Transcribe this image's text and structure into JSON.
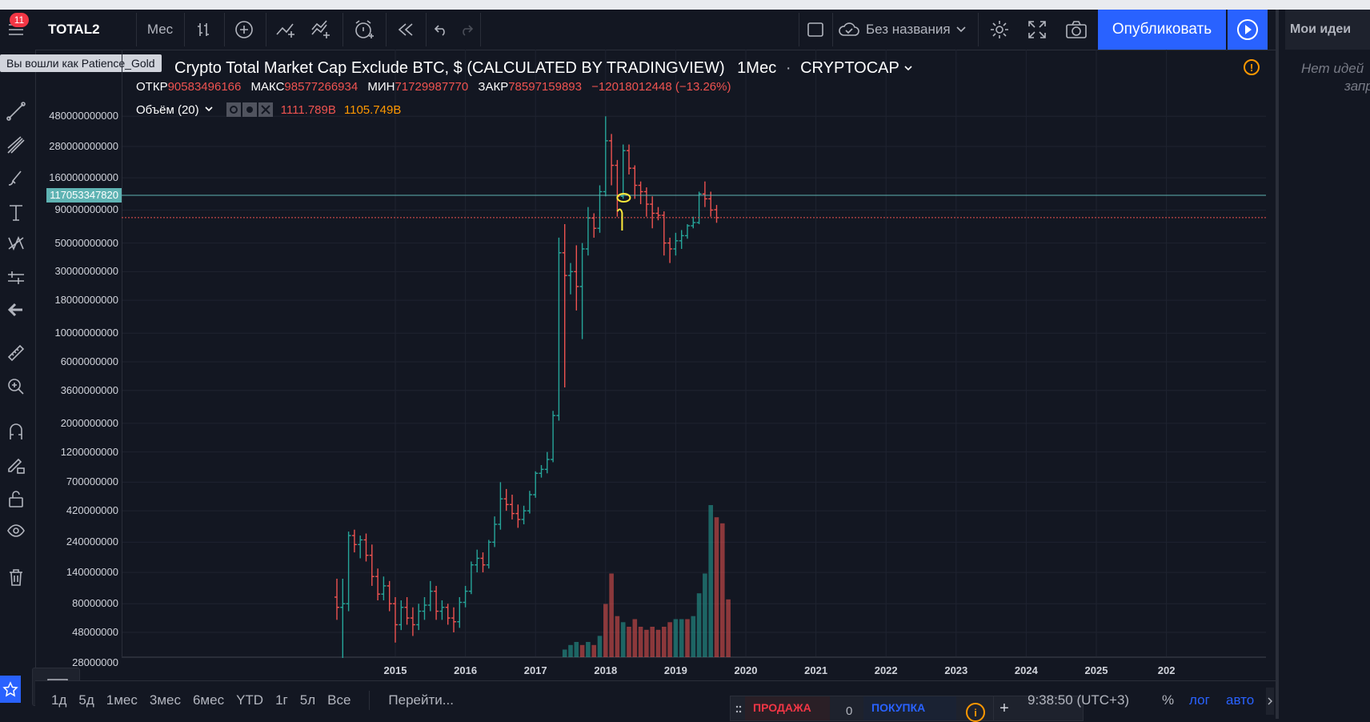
{
  "topbar": {
    "badge_count": "11",
    "symbol": "TOTAL2",
    "interval": "Мес",
    "layout_name": "Без названия",
    "publish_label": "Опубликовать"
  },
  "tooltip": "Вы вошли как Patience_Gold",
  "right_panel": {
    "title": "Мои идеи",
    "empty_line1": "Нет идей",
    "empty_line2": "запр"
  },
  "legend": {
    "title": "Crypto Total Market Cap Exclude BTC, $ (CALCULATED BY TRADINGVIEW)",
    "interval": "1Мес",
    "exchange": "CRYPTOCAP",
    "open_label": "ОТКР",
    "open_value": "90583496166",
    "high_label": "МАКС",
    "high_value": "98577266934",
    "low_label": "МИН",
    "low_value": "71729987770",
    "close_label": "ЗАКР",
    "close_value": "78597159893",
    "change": "−12018012448 (−13.26%)",
    "volume_label": "Объём (20)",
    "volume_value": "1111.789B",
    "volume_ma": "1105.749B"
  },
  "price_scale": {
    "labels": [
      "480000000000",
      "280000000000",
      "160000000000",
      "90000000000",
      "50000000000",
      "30000000000",
      "18000000000",
      "10000000000",
      "6000000000",
      "3600000000",
      "2000000000",
      "1200000000",
      "700000000",
      "420000000",
      "240000000",
      "140000000",
      "80000000",
      "48000000",
      "28000000"
    ],
    "crosshair_label": "117053347820"
  },
  "time_axis": {
    "labels": [
      "2015",
      "2016",
      "2017",
      "2018",
      "2019",
      "2020",
      "2021",
      "2022",
      "2023",
      "2024",
      "2025",
      "202"
    ]
  },
  "bottombar": {
    "ranges": [
      "1д",
      "5д",
      "1мес",
      "3мес",
      "6мес",
      "YTD",
      "1г",
      "5л",
      "Все"
    ],
    "goto": "Перейти...",
    "sell_label": "ПРОДАЖА",
    "spread": "0",
    "buy_label": "ПОКУПКА",
    "clock": "9:38:50 (UTC+3)",
    "percent": "%",
    "log": "лог",
    "auto": "авто"
  },
  "colors": {
    "up": "#26a69a",
    "down": "#ef5350",
    "accent": "#2962ff",
    "annotation": "#ffeb3b",
    "crosshair": "#5fb3b3"
  },
  "chart_data": {
    "type": "candlestick",
    "scale": "log",
    "interval": "monthly",
    "candles": [
      {
        "t": "2014-03",
        "o": 90000000.0,
        "h": 125000000.0,
        "l": 60000000.0,
        "c": 75000000.0
      },
      {
        "t": "2014-04",
        "o": 75000000.0,
        "h": 125000000.0,
        "l": 28000000.0,
        "c": 80000000.0
      },
      {
        "t": "2014-05",
        "o": 80000000.0,
        "h": 290000000.0,
        "l": 70000000.0,
        "c": 270000000.0
      },
      {
        "t": "2014-06",
        "o": 270000000.0,
        "h": 300000000.0,
        "l": 200000000.0,
        "c": 230000000.0
      },
      {
        "t": "2014-07",
        "o": 230000000.0,
        "h": 270000000.0,
        "l": 180000000.0,
        "c": 250000000.0
      },
      {
        "t": "2014-08",
        "o": 250000000.0,
        "h": 280000000.0,
        "l": 170000000.0,
        "c": 190000000.0
      },
      {
        "t": "2014-09",
        "o": 190000000.0,
        "h": 230000000.0,
        "l": 110000000.0,
        "c": 130000000.0
      },
      {
        "t": "2014-10",
        "o": 130000000.0,
        "h": 150000000.0,
        "l": 85000000.0,
        "c": 95000000.0
      },
      {
        "t": "2014-11",
        "o": 95000000.0,
        "h": 130000000.0,
        "l": 85000000.0,
        "c": 110000000.0
      },
      {
        "t": "2014-12",
        "o": 110000000.0,
        "h": 120000000.0,
        "l": 70000000.0,
        "c": 80000000.0
      },
      {
        "t": "2015-01",
        "o": 80000000.0,
        "h": 90000000.0,
        "l": 40000000.0,
        "c": 55000000.0
      },
      {
        "t": "2015-02",
        "o": 55000000.0,
        "h": 85000000.0,
        "l": 50000000.0,
        "c": 75000000.0
      },
      {
        "t": "2015-03",
        "o": 75000000.0,
        "h": 90000000.0,
        "l": 55000000.0,
        "c": 62000000.0
      },
      {
        "t": "2015-04",
        "o": 62000000.0,
        "h": 75000000.0,
        "l": 45000000.0,
        "c": 55000000.0
      },
      {
        "t": "2015-05",
        "o": 55000000.0,
        "h": 80000000.0,
        "l": 50000000.0,
        "c": 70000000.0
      },
      {
        "t": "2015-06",
        "o": 70000000.0,
        "h": 90000000.0,
        "l": 60000000.0,
        "c": 78000000.0
      },
      {
        "t": "2015-07",
        "o": 78000000.0,
        "h": 120000000.0,
        "l": 70000000.0,
        "c": 100000000.0
      },
      {
        "t": "2015-08",
        "o": 100000000.0,
        "h": 110000000.0,
        "l": 60000000.0,
        "c": 70000000.0
      },
      {
        "t": "2015-09",
        "o": 70000000.0,
        "h": 85000000.0,
        "l": 60000000.0,
        "c": 75000000.0
      },
      {
        "t": "2015-10",
        "o": 75000000.0,
        "h": 80000000.0,
        "l": 55000000.0,
        "c": 62000000.0
      },
      {
        "t": "2015-11",
        "o": 62000000.0,
        "h": 75000000.0,
        "l": 48000000.0,
        "c": 58000000.0
      },
      {
        "t": "2015-12",
        "o": 58000000.0,
        "h": 90000000.0,
        "l": 52000000.0,
        "c": 82000000.0
      },
      {
        "t": "2016-01",
        "o": 82000000.0,
        "h": 110000000.0,
        "l": 75000000.0,
        "c": 100000000.0
      },
      {
        "t": "2016-02",
        "o": 100000000.0,
        "h": 170000000.0,
        "l": 95000000.0,
        "c": 160000000.0
      },
      {
        "t": "2016-03",
        "o": 160000000.0,
        "h": 210000000.0,
        "l": 140000000.0,
        "c": 180000000.0
      },
      {
        "t": "2016-04",
        "o": 180000000.0,
        "h": 200000000.0,
        "l": 140000000.0,
        "c": 160000000.0
      },
      {
        "t": "2016-05",
        "o": 160000000.0,
        "h": 250000000.0,
        "l": 150000000.0,
        "c": 240000000.0
      },
      {
        "t": "2016-06",
        "o": 240000000.0,
        "h": 380000000.0,
        "l": 220000000.0,
        "c": 330000000.0
      },
      {
        "t": "2016-07",
        "o": 330000000.0,
        "h": 700000000.0,
        "l": 300000000.0,
        "c": 520000000.0
      },
      {
        "t": "2016-08",
        "o": 520000000.0,
        "h": 620000000.0,
        "l": 420000000.0,
        "c": 470000000.0
      },
      {
        "t": "2016-09",
        "o": 470000000.0,
        "h": 560000000.0,
        "l": 360000000.0,
        "c": 400000000.0
      },
      {
        "t": "2016-10",
        "o": 400000000.0,
        "h": 470000000.0,
        "l": 310000000.0,
        "c": 360000000.0
      },
      {
        "t": "2016-11",
        "o": 360000000.0,
        "h": 460000000.0,
        "l": 330000000.0,
        "c": 420000000.0
      },
      {
        "t": "2016-12",
        "o": 420000000.0,
        "h": 600000000.0,
        "l": 400000000.0,
        "c": 560000000.0
      },
      {
        "t": "2017-01",
        "o": 560000000.0,
        "h": 850000000.0,
        "l": 530000000.0,
        "c": 820000000.0
      },
      {
        "t": "2017-02",
        "o": 820000000.0,
        "h": 950000000.0,
        "l": 760000000.0,
        "c": 880000000.0
      },
      {
        "t": "2017-03",
        "o": 880000000.0,
        "h": 1200000000.0,
        "l": 820000000.0,
        "c": 1050000000.0
      },
      {
        "t": "2017-04",
        "o": 1050000000.0,
        "h": 2500000000.0,
        "l": 1000000000.0,
        "c": 2300000000.0
      },
      {
        "t": "2017-05",
        "o": 2300000000.0,
        "h": 55000000000.0,
        "l": 2100000000.0,
        "c": 42000000000.0
      },
      {
        "t": "2017-06",
        "o": 42000000000.0,
        "h": 70000000000.0,
        "l": 3800000000.0,
        "c": 28000000000.0
      },
      {
        "t": "2017-07",
        "o": 28000000000.0,
        "h": 35000000000.0,
        "l": 20000000000.0,
        "c": 30000000000.0
      },
      {
        "t": "2017-08",
        "o": 30000000000.0,
        "h": 48000000000.0,
        "l": 15000000000.0,
        "c": 23000000000.0
      },
      {
        "t": "2017-09",
        "o": 23000000000.0,
        "h": 50000000000.0,
        "l": 9000000000.0,
        "c": 45000000000.0
      },
      {
        "t": "2017-10",
        "o": 45000000000.0,
        "h": 95000000000.0,
        "l": 40000000000.0,
        "c": 78000000000.0
      },
      {
        "t": "2017-11",
        "o": 78000000000.0,
        "h": 85000000000.0,
        "l": 55000000000.0,
        "c": 65000000000.0
      },
      {
        "t": "2017-12",
        "o": 65000000000.0,
        "h": 140000000000.0,
        "l": 60000000000.0,
        "c": 125000000000.0
      },
      {
        "t": "2018-01",
        "o": 125000000000.0,
        "h": 480000000000.0,
        "l": 115000000000.0,
        "c": 310000000000.0
      },
      {
        "t": "2018-02",
        "o": 310000000000.0,
        "h": 350000000000.0,
        "l": 140000000000.0,
        "c": 200000000000.0
      },
      {
        "t": "2018-03",
        "o": 200000000000.0,
        "h": 220000000000.0,
        "l": 80000000000.0,
        "c": 115000000000.0
      },
      {
        "t": "2018-04",
        "o": 115000000000.0,
        "h": 290000000000.0,
        "l": 110000000000.0,
        "c": 260000000000.0
      },
      {
        "t": "2018-05",
        "o": 260000000000.0,
        "h": 290000000000.0,
        "l": 170000000000.0,
        "c": 190000000000.0
      },
      {
        "t": "2018-06",
        "o": 190000000000.0,
        "h": 200000000000.0,
        "l": 110000000000.0,
        "c": 140000000000.0
      },
      {
        "t": "2018-07",
        "o": 140000000000.0,
        "h": 150000000000.0,
        "l": 100000000000.0,
        "c": 125000000000.0
      },
      {
        "t": "2018-08",
        "o": 125000000000.0,
        "h": 135000000000.0,
        "l": 80000000000.0,
        "c": 100000000000.0
      },
      {
        "t": "2018-09",
        "o": 100000000000.0,
        "h": 115000000000.0,
        "l": 65000000000.0,
        "c": 85000000000.0
      },
      {
        "t": "2018-10",
        "o": 85000000000.0,
        "h": 95000000000.0,
        "l": 75000000000.0,
        "c": 82000000000.0
      },
      {
        "t": "2018-11",
        "o": 82000000000.0,
        "h": 88000000000.0,
        "l": 40000000000.0,
        "c": 50000000000.0
      },
      {
        "t": "2018-12",
        "o": 50000000000.0,
        "h": 55000000000.0,
        "l": 35000000000.0,
        "c": 45000000000.0
      },
      {
        "t": "2019-01",
        "o": 45000000000.0,
        "h": 60000000000.0,
        "l": 40000000000.0,
        "c": 52000000000.0
      },
      {
        "t": "2019-02",
        "o": 52000000000.0,
        "h": 63000000000.0,
        "l": 45000000000.0,
        "c": 57000000000.0
      },
      {
        "t": "2019-03",
        "o": 57000000000.0,
        "h": 70000000000.0,
        "l": 54000000000.0,
        "c": 68000000000.0
      },
      {
        "t": "2019-04",
        "o": 68000000000.0,
        "h": 80000000000.0,
        "l": 65000000000.0,
        "c": 72000000000.0
      },
      {
        "t": "2019-05",
        "o": 72000000000.0,
        "h": 125000000000.0,
        "l": 70000000000.0,
        "c": 120000000000.0
      },
      {
        "t": "2019-06",
        "o": 120000000000.0,
        "h": 150000000000.0,
        "l": 95000000000.0,
        "c": 110000000000.0
      },
      {
        "t": "2019-07",
        "o": 110000000000.0,
        "h": 125000000000.0,
        "l": 80000000000.0,
        "c": 90000000000.0
      },
      {
        "t": "2019-08",
        "o": 90580000000.0,
        "h": 98580000000.0,
        "l": 71730000000.0,
        "c": 78600000000.0
      }
    ],
    "volume_bars": [
      {
        "t": "2017-06",
        "v": 0.05,
        "dir": "up"
      },
      {
        "t": "2017-07",
        "v": 0.08,
        "dir": "up"
      },
      {
        "t": "2017-08",
        "v": 0.1,
        "dir": "up"
      },
      {
        "t": "2017-09",
        "v": 0.08,
        "dir": "down"
      },
      {
        "t": "2017-10",
        "v": 0.1,
        "dir": "up"
      },
      {
        "t": "2017-11",
        "v": 0.08,
        "dir": "down"
      },
      {
        "t": "2017-12",
        "v": 0.14,
        "dir": "up"
      },
      {
        "t": "2018-01",
        "v": 0.35,
        "dir": "down"
      },
      {
        "t": "2018-02",
        "v": 0.55,
        "dir": "down"
      },
      {
        "t": "2018-03",
        "v": 0.27,
        "dir": "down"
      },
      {
        "t": "2018-04",
        "v": 0.23,
        "dir": "up"
      },
      {
        "t": "2018-05",
        "v": 0.2,
        "dir": "down"
      },
      {
        "t": "2018-06",
        "v": 0.25,
        "dir": "down"
      },
      {
        "t": "2018-07",
        "v": 0.2,
        "dir": "down"
      },
      {
        "t": "2018-08",
        "v": 0.18,
        "dir": "down"
      },
      {
        "t": "2018-09",
        "v": 0.2,
        "dir": "down"
      },
      {
        "t": "2018-10",
        "v": 0.18,
        "dir": "down"
      },
      {
        "t": "2018-11",
        "v": 0.2,
        "dir": "down"
      },
      {
        "t": "2018-12",
        "v": 0.23,
        "dir": "down"
      },
      {
        "t": "2019-01",
        "v": 0.25,
        "dir": "up"
      },
      {
        "t": "2019-02",
        "v": 0.25,
        "dir": "up"
      },
      {
        "t": "2019-03",
        "v": 0.25,
        "dir": "down"
      },
      {
        "t": "2019-04",
        "v": 0.27,
        "dir": "up"
      },
      {
        "t": "2019-05",
        "v": 0.42,
        "dir": "up"
      },
      {
        "t": "2019-06",
        "v": 0.55,
        "dir": "up"
      },
      {
        "t": "2019-07",
        "v": 1.0,
        "dir": "up"
      },
      {
        "t": "2019-08",
        "v": 0.92,
        "dir": "down"
      },
      {
        "t": "2019-09",
        "v": 0.88,
        "dir": "down"
      },
      {
        "t": "2019-10",
        "v": 0.38,
        "dir": "down"
      }
    ],
    "crosshair_value": 117053347820,
    "last_price_value": 78597159893,
    "xlabels": [
      "2015",
      "2016",
      "2017",
      "2018",
      "2019",
      "2020",
      "2021",
      "2022",
      "2023",
      "2024",
      "2025",
      "202"
    ]
  }
}
